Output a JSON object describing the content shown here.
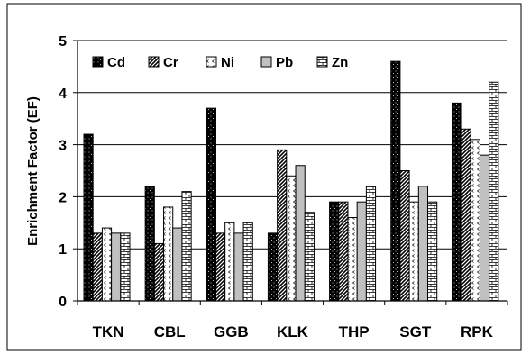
{
  "chart_data": {
    "type": "bar",
    "title": "",
    "xlabel": "",
    "ylabel": "Enrichment Factor (EF)",
    "ylim": [
      0,
      5
    ],
    "yticks": [
      0,
      1,
      2,
      3,
      4,
      5
    ],
    "grid": "horizontal",
    "legend_position": "top-left-inside",
    "categories": [
      "TKN",
      "CBL",
      "GGB",
      "KLK",
      "THP",
      "SGT",
      "RPK"
    ],
    "series": [
      {
        "name": "Cd",
        "pattern": "dots-on-black",
        "values": [
          3.2,
          2.2,
          3.7,
          1.3,
          1.9,
          4.6,
          3.8
        ]
      },
      {
        "name": "Cr",
        "pattern": "diagonal-hatch",
        "values": [
          1.3,
          1.1,
          1.3,
          2.9,
          1.9,
          2.5,
          3.3
        ]
      },
      {
        "name": "Ni",
        "pattern": "chevron-dots",
        "values": [
          1.4,
          1.8,
          1.5,
          2.4,
          1.6,
          1.9,
          3.1
        ]
      },
      {
        "name": "Pb",
        "pattern": "solid-gray",
        "values": [
          1.3,
          1.4,
          1.3,
          2.6,
          1.9,
          2.2,
          2.8
        ]
      },
      {
        "name": "Zn",
        "pattern": "brick-grid",
        "values": [
          1.3,
          2.1,
          1.5,
          1.7,
          2.2,
          1.9,
          4.2
        ]
      }
    ]
  }
}
